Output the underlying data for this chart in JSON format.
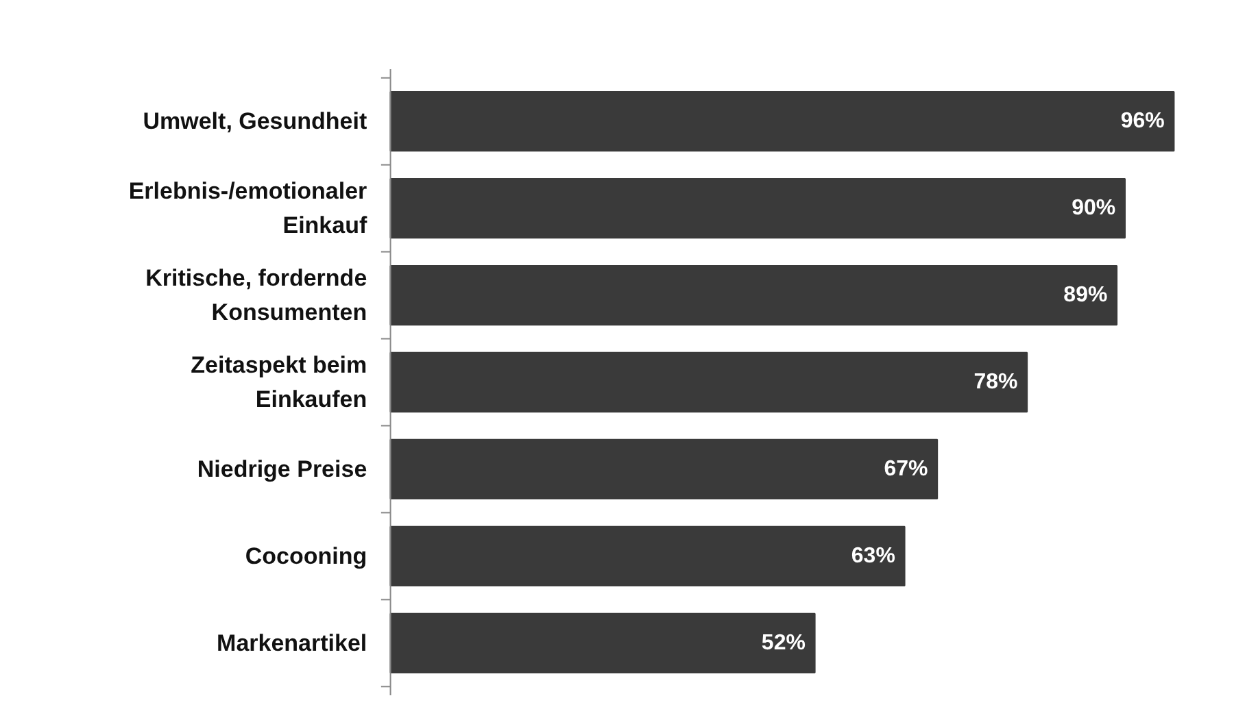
{
  "chart_data": {
    "type": "bar",
    "orientation": "horizontal",
    "categories": [
      "Umwelt, Gesundheit",
      "Erlebnis-/emotionaler\nEinkauf",
      "Kritische, fordernde\nKonsumenten",
      "Zeitaspekt beim\nEinkaufen",
      "Niedrige Preise",
      "Cocooning",
      "Markenartikel"
    ],
    "values": [
      96,
      90,
      89,
      78,
      67,
      63,
      52
    ],
    "value_labels": [
      "96%",
      "90%",
      "89%",
      "78%",
      "67%",
      "63%",
      "52%"
    ],
    "color": "#3a3a3a",
    "grid": false
  }
}
